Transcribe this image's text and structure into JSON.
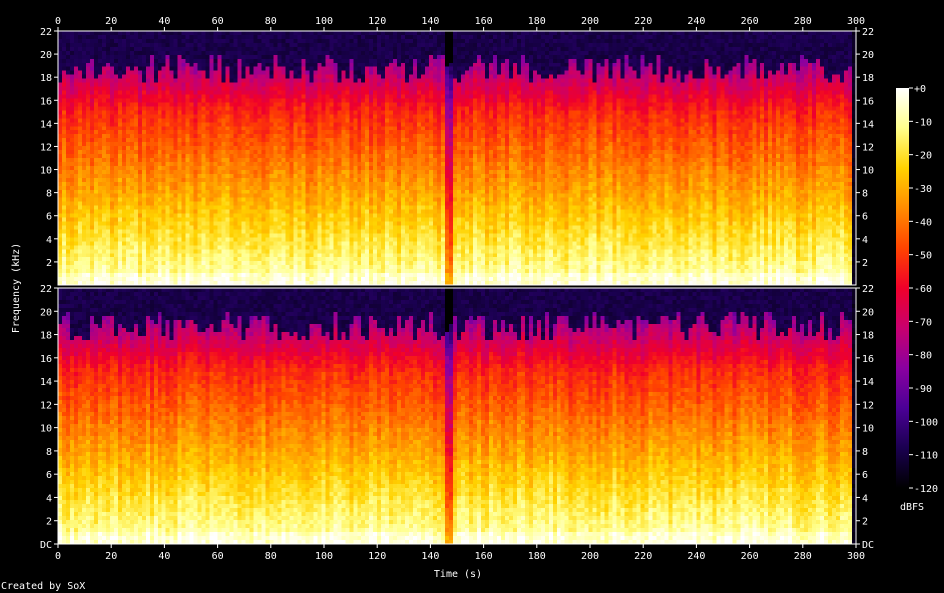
{
  "chart_data": {
    "type": "heatmap",
    "title": "",
    "xlabel": "Time (s)",
    "ylabel": "Frequency (kHz)",
    "colorbar_label": "dBFS",
    "footer": "Created by SoX",
    "x_ticks": [
      "0",
      "20",
      "40",
      "60",
      "80",
      "100",
      "120",
      "140",
      "160",
      "180",
      "200",
      "220",
      "240",
      "260",
      "280",
      "300"
    ],
    "xlim": [
      0,
      300
    ],
    "channels": [
      {
        "name": "",
        "y_ticks": [
          "22",
          "20",
          "18",
          "16",
          "14",
          "12",
          "10",
          "8",
          "6",
          "4",
          "2"
        ]
      },
      {
        "name": "",
        "y_ticks": [
          "22",
          "20",
          "18",
          "16",
          "14",
          "12",
          "10",
          "8",
          "6",
          "4",
          "2",
          "DC"
        ]
      }
    ],
    "ylim_khz": [
      0,
      22
    ],
    "colorbar_ticks": [
      "+0",
      "-10",
      "-20",
      "-30",
      "-40",
      "-50",
      "-60",
      "-70",
      "-80",
      "-90",
      "-100",
      "-110",
      "-120"
    ],
    "zlim_dbfs": [
      -120,
      0
    ],
    "audio_duration_s": 298,
    "upper_content_khz": 20,
    "brief_dropout_s": 147,
    "colors": {
      "background": "#000000",
      "axis": "#ffffff",
      "palette": [
        "#000000",
        "#1a0050",
        "#4b0096",
        "#8a00a0",
        "#c8006e",
        "#f0002a",
        "#ff4400",
        "#ff8c00",
        "#ffd200",
        "#ffff8c",
        "#ffffff"
      ]
    }
  }
}
